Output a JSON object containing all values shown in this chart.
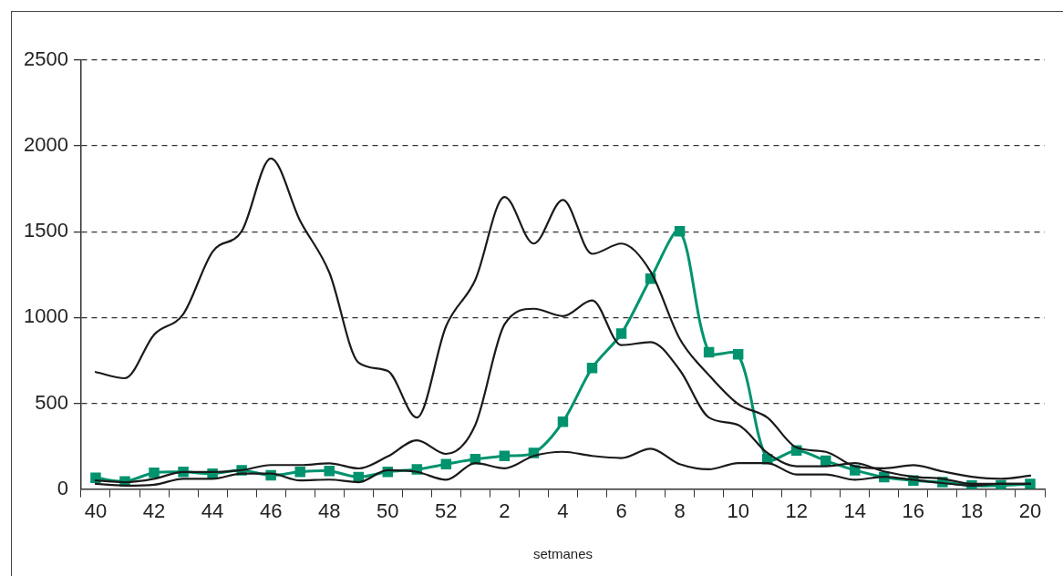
{
  "chart_data": {
    "type": "line",
    "xlabel": "setmanes",
    "categories": [
      "40",
      null,
      "42",
      null,
      "44",
      null,
      "46",
      null,
      "48",
      null,
      "50",
      null,
      "52",
      null,
      "2",
      null,
      "4",
      null,
      "6",
      null,
      "8",
      null,
      "10",
      null,
      "12",
      null,
      "14",
      null,
      "16",
      null,
      "18",
      null,
      "20"
    ],
    "series": [
      {
        "color": "#1a1a1a",
        "marker": "none",
        "values": [
          682,
          646,
          900,
          1020,
          1383,
          1503,
          1927,
          1564,
          1262,
          737,
          688,
          417,
          950,
          1220,
          1703,
          1431,
          1685,
          1371,
          1431,
          1268,
          876,
          664,
          495,
          417,
          242,
          217,
          133,
          121,
          139,
          103,
          72,
          60,
          78
        ]
      },
      {
        "color": "#1a1a1a",
        "marker": "none",
        "values": [
          50,
          40,
          60,
          100,
          100,
          110,
          140,
          140,
          150,
          120,
          190,
          284,
          205,
          374,
          960,
          1051,
          1008,
          1099,
          839,
          857,
          694,
          417,
          374,
          211,
          133,
          133,
          151,
          103,
          72,
          60,
          30,
          30,
          30
        ]
      },
      {
        "color": "#1a1a1a",
        "marker": "none",
        "values": [
          30,
          20,
          25,
          60,
          60,
          90,
          90,
          50,
          55,
          40,
          110,
          100,
          54,
          151,
          121,
          193,
          217,
          193,
          181,
          235,
          145,
          115,
          151,
          151,
          85,
          85,
          54,
          72,
          54,
          35,
          20,
          30,
          30
        ]
      },
      {
        "color": "#00936e",
        "marker": "square",
        "values": [
          65,
          45,
          95,
          100,
          90,
          110,
          80,
          100,
          105,
          70,
          100,
          115,
          145,
          175,
          193,
          210,
          392,
          706,
          906,
          1226,
          1503,
          797,
          785,
          175,
          225,
          165,
          110,
          70,
          50,
          40,
          20,
          20,
          30
        ]
      }
    ],
    "ylim": [
      0,
      2500
    ],
    "yticks": [
      0,
      500,
      1000,
      1500,
      2000,
      2500
    ],
    "grid": "y",
    "line_style": "solid"
  }
}
